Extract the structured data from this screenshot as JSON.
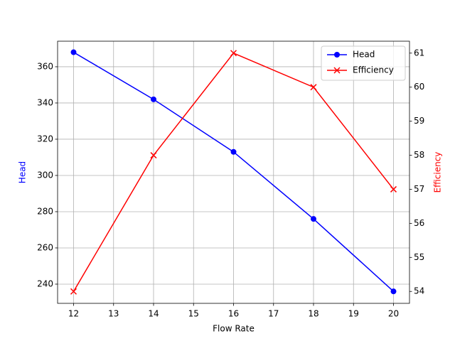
{
  "chart_data": {
    "type": "line",
    "x": [
      12,
      14,
      16,
      18,
      20
    ],
    "x_label": "Flow Rate",
    "y_label": "Head",
    "y2_label": "Efficiency",
    "series": [
      {
        "name": "Head",
        "color": "#0000ff",
        "marker": "o",
        "values": [
          368,
          342,
          313,
          276,
          236
        ]
      },
      {
        "name": "Efficiency",
        "color": "#ff0000",
        "marker": "x",
        "axis": "y2",
        "values": [
          54,
          58,
          61,
          60,
          57
        ]
      }
    ],
    "xlim": [
      11.6,
      20.4
    ],
    "xticks": [
      12,
      13,
      14,
      15,
      16,
      17,
      18,
      19,
      20
    ],
    "ylim": [
      229.4,
      374.1
    ],
    "yticks": [
      240,
      260,
      280,
      300,
      320,
      340,
      360
    ],
    "y2lim": [
      53.65,
      61.35
    ],
    "y2ticks": [
      54,
      55,
      56,
      57,
      58,
      59,
      60,
      61
    ],
    "grid": true,
    "legend": "upper right"
  }
}
